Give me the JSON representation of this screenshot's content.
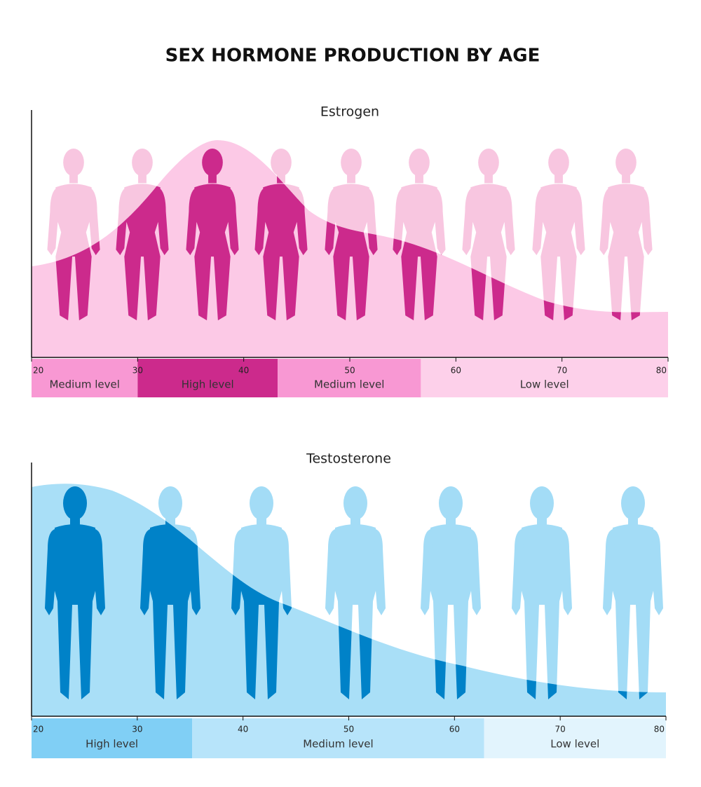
{
  "title": "SEX HORMONE PRODUCTION BY AGE",
  "chart_data": [
    {
      "type": "area",
      "title": "Estrogen",
      "color": "#fcc9e6",
      "xlim": [
        20,
        80
      ],
      "xticks": [
        20,
        30,
        40,
        50,
        60,
        70,
        80
      ],
      "bands": [
        {
          "label": "Medium level",
          "from": 20,
          "to": 30,
          "color": "#f898d3"
        },
        {
          "label": "High level",
          "from": 30,
          "to": 43.2,
          "color": "#cc2a8c"
        },
        {
          "label": "Medium level",
          "from": 43.2,
          "to": 56.7,
          "color": "#f898d3"
        },
        {
          "label": "Low level",
          "from": 56.7,
          "to": 80,
          "color": "#fdd0ea"
        }
      ]
    },
    {
      "type": "area",
      "title": "Testosterone",
      "color": "#a9dff7",
      "xlim": [
        20,
        80
      ],
      "xticks": [
        20,
        30,
        40,
        50,
        60,
        70,
        80
      ],
      "bands": [
        {
          "label": "High level",
          "from": 20,
          "to": 35.2,
          "color": "#80cff5"
        },
        {
          "label": "Medium level",
          "from": 35.2,
          "to": 62.8,
          "color": "#b7e4fa"
        },
        {
          "label": "Low level",
          "from": 62.8,
          "to": 80,
          "color": "#e2f4fd"
        }
      ]
    }
  ]
}
